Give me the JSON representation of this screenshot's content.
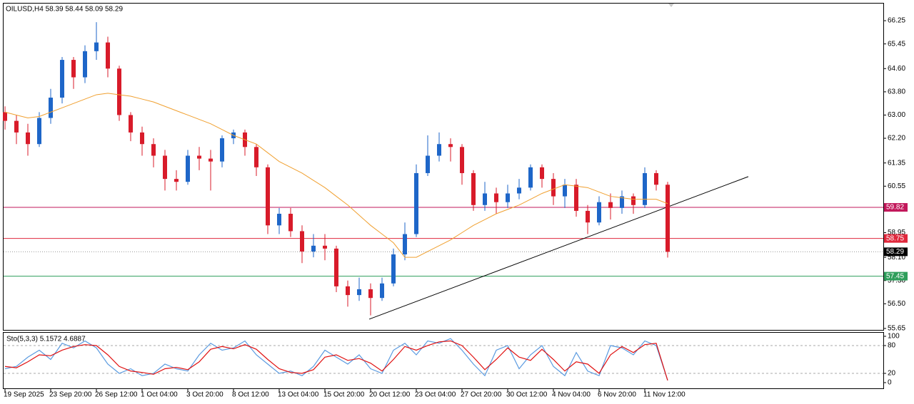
{
  "chart_data": [
    {
      "type": "candlestick",
      "title": "OILUSD,H4  58.39 58.44 58.09 58.29",
      "categories": [
        "19 Sep 2025",
        null,
        null,
        null,
        "23 Sep 20:00",
        null,
        null,
        null,
        "26 Sep 12:00",
        null,
        null,
        null,
        "1 Oct 04:00",
        null,
        null,
        null,
        "3 Oct 20:00",
        null,
        null,
        null,
        "8 Oct 12:00",
        null,
        null,
        null,
        "13 Oct 04:00",
        null,
        null,
        null,
        "15 Oct 20:00",
        null,
        null,
        null,
        "20 Oct 12:00",
        null,
        null,
        null,
        "23 Oct 04:00",
        null,
        null,
        null,
        "27 Oct 20:00",
        null,
        null,
        null,
        "30 Oct 12:00",
        null,
        null,
        null,
        "4 Nov 04:00",
        null,
        null,
        null,
        "6 Nov 20:00",
        null,
        null,
        null,
        "11 Nov 12:00",
        null,
        null
      ],
      "open": [
        63.1,
        62.8,
        62.4,
        62.0,
        62.9,
        63.6,
        64.9,
        64.3,
        65.2,
        65.5,
        64.6,
        63.0,
        62.4,
        62.0,
        61.6,
        60.8,
        60.7,
        61.6,
        61.5,
        61.4,
        62.2,
        62.4,
        61.9,
        61.2,
        59.2,
        59.6,
        59.0,
        58.3,
        58.5,
        58.4,
        57.1,
        56.8,
        57.0,
        56.7,
        57.2,
        58.2,
        58.9,
        61.0,
        61.6,
        62.0,
        61.9,
        61.0,
        59.9,
        60.3,
        60.0,
        60.3,
        60.5,
        61.2,
        60.8,
        60.2,
        60.6,
        59.7,
        59.3,
        60.0,
        59.8,
        60.2,
        59.9,
        61.0,
        60.6
      ],
      "high": [
        63.3,
        63.0,
        62.7,
        63.1,
        63.9,
        65.0,
        65.0,
        65.4,
        66.2,
        65.7,
        64.7,
        63.1,
        62.6,
        62.2,
        61.8,
        61.1,
        61.8,
        61.9,
        61.8,
        62.3,
        62.5,
        62.5,
        62.0,
        61.3,
        59.8,
        59.8,
        59.2,
        58.9,
        58.9,
        58.5,
        57.3,
        57.4,
        57.2,
        57.4,
        58.4,
        59.3,
        61.3,
        62.3,
        62.4,
        62.2,
        62.0,
        61.1,
        60.7,
        60.5,
        60.6,
        60.8,
        61.3,
        61.3,
        61.0,
        60.8,
        60.8,
        59.9,
        60.2,
        60.3,
        60.4,
        60.3,
        61.2,
        61.1,
        60.7
      ],
      "low": [
        62.5,
        62.0,
        61.6,
        61.9,
        62.7,
        63.4,
        63.9,
        64.1,
        64.9,
        64.3,
        62.8,
        62.1,
        61.6,
        61.2,
        60.4,
        60.4,
        60.6,
        61.1,
        60.4,
        61.2,
        62.0,
        61.6,
        60.9,
        58.9,
        58.9,
        58.8,
        57.9,
        58.1,
        58.0,
        56.9,
        56.4,
        56.6,
        56.1,
        56.6,
        57.1,
        58.0,
        58.8,
        60.9,
        61.4,
        61.4,
        60.6,
        59.7,
        59.7,
        59.6,
        59.8,
        60.1,
        60.4,
        60.5,
        59.9,
        59.8,
        59.5,
        58.9,
        59.2,
        59.4,
        59.6,
        59.6,
        59.8,
        60.4,
        58.09
      ],
      "close": [
        62.8,
        62.4,
        62.0,
        62.9,
        63.6,
        64.9,
        64.3,
        65.2,
        65.5,
        64.6,
        63.0,
        62.4,
        62.0,
        61.6,
        60.8,
        60.7,
        61.6,
        61.5,
        61.4,
        62.2,
        62.4,
        61.9,
        61.2,
        59.2,
        59.6,
        59.0,
        58.3,
        58.5,
        58.4,
        57.1,
        56.8,
        57.0,
        56.7,
        57.2,
        58.2,
        58.9,
        61.0,
        61.6,
        62.0,
        61.9,
        61.0,
        59.9,
        60.3,
        60.0,
        60.3,
        60.5,
        61.2,
        60.8,
        60.2,
        60.6,
        59.7,
        59.3,
        60.0,
        59.8,
        60.2,
        59.9,
        61.0,
        60.6,
        58.29
      ],
      "up_color": "#1e66c8",
      "down_color": "#d81b2a",
      "ma": {
        "color": "#f0a030",
        "values": [
          63.1,
          63.0,
          62.9,
          62.95,
          63.1,
          63.25,
          63.4,
          63.55,
          63.7,
          63.75,
          63.7,
          63.65,
          63.55,
          63.45,
          63.3,
          63.15,
          63.0,
          62.85,
          62.7,
          62.5,
          62.3,
          62.15,
          62.0,
          61.7,
          61.4,
          61.2,
          61.0,
          60.75,
          60.5,
          60.2,
          59.9,
          59.55,
          59.2,
          58.9,
          58.6,
          58.1,
          58.1,
          58.3,
          58.5,
          58.7,
          58.95,
          59.2,
          59.4,
          59.6,
          59.75,
          59.9,
          60.1,
          60.3,
          60.45,
          60.6,
          60.55,
          60.5,
          60.35,
          60.2,
          60.15,
          60.1,
          60.1,
          60.1,
          59.95
        ]
      },
      "levels": [
        {
          "value": 59.82,
          "color": "#c2185b"
        },
        {
          "value": 58.75,
          "color": "#e0283c"
        },
        {
          "value": 58.29,
          "color": "#000000",
          "style": "dotted"
        },
        {
          "value": 57.45,
          "color": "#2e9e5b"
        }
      ],
      "trendline": {
        "x": [
          31.88,
          65.06
        ],
        "y": [
          55.97,
          60.88
        ],
        "color": "#000000"
      },
      "ylim": [
        55.6,
        66.84
      ],
      "yticks": [
        66.25,
        65.45,
        {
          "value": 64.6,
          "label": "64.60"
        },
        {
          "value": 63.8,
          "label": "63.80"
        },
        {
          "value": 63,
          "label": "63.00"
        },
        {
          "value": 62.2,
          "label": "62.20"
        },
        61.35,
        60.55,
        59.75,
        58.95,
        {
          "value": 58.1,
          "label": "58.10"
        },
        {
          "value": 57.3,
          "label": "57.30"
        },
        {
          "value": 56.5,
          "label": "56.50"
        },
        55.65
      ]
    },
    {
      "type": "line",
      "title": "Sto(5,3,3) 5.1572 4.6887",
      "series": [
        {
          "color": "#5b9be0",
          "values": [
            30,
            35,
            55,
            70,
            50,
            85,
            75,
            90,
            75,
            40,
            20,
            30,
            15,
            20,
            40,
            30,
            25,
            60,
            85,
            70,
            75,
            90,
            60,
            40,
            20,
            25,
            15,
            35,
            70,
            55,
            40,
            60,
            30,
            20,
            70,
            85,
            60,
            90,
            85,
            95,
            70,
            40,
            15,
            70,
            80,
            30,
            60,
            80,
            35,
            15,
            65,
            25,
            15,
            80,
            75,
            60,
            90,
            80,
            5.1572
          ]
        },
        {
          "color": "#e01010",
          "values": [
            35,
            32,
            45,
            60,
            58,
            70,
            78,
            82,
            80,
            60,
            35,
            25,
            22,
            18,
            30,
            33,
            28,
            45,
            72,
            78,
            73,
            82,
            72,
            50,
            30,
            22,
            20,
            28,
            55,
            60,
            48,
            52,
            42,
            25,
            50,
            78,
            70,
            80,
            88,
            90,
            80,
            55,
            28,
            50,
            75,
            55,
            48,
            72,
            50,
            25,
            45,
            40,
            20,
            60,
            78,
            65,
            82,
            85,
            4.6887
          ]
        }
      ],
      "grid_levels": [
        80,
        20
      ],
      "ylim": [
        -12.3,
        109.2
      ],
      "yticks": [
        100,
        80,
        20,
        0
      ]
    }
  ]
}
